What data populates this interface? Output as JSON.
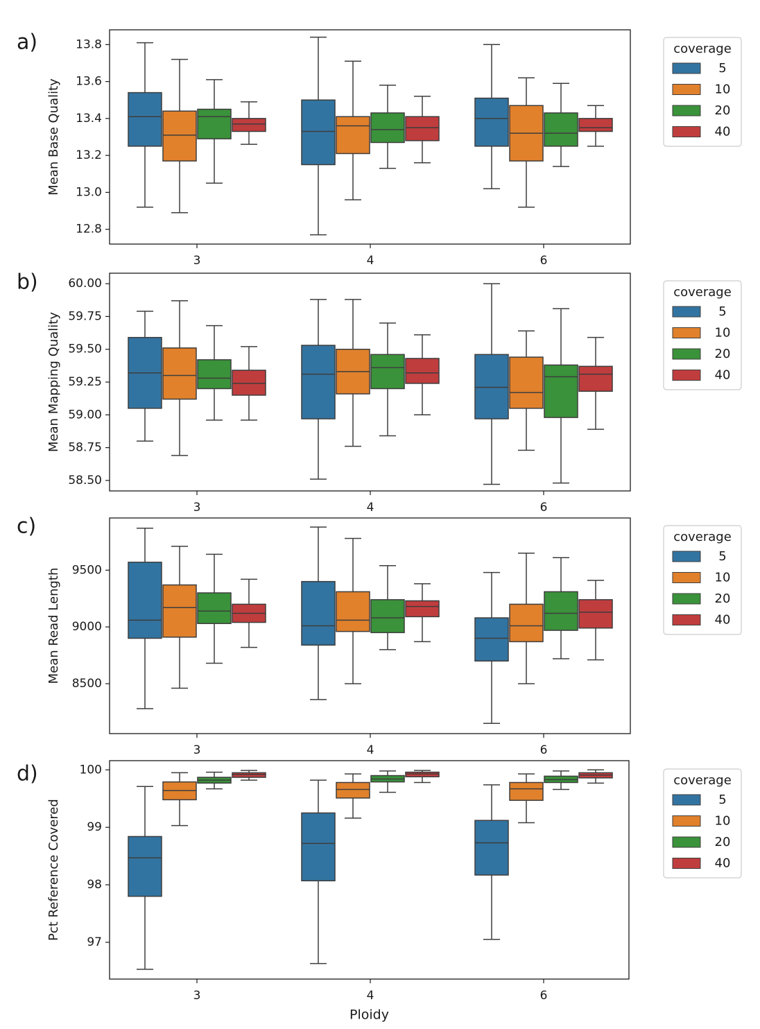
{
  "chart_data": [
    {
      "type": "box",
      "panel_label": "a)",
      "title": "",
      "xlabel": "",
      "ylabel": "Mean Base Quality",
      "categories": [
        "3",
        "4",
        "6"
      ],
      "ylim": [
        12.72,
        13.88
      ],
      "yticks": [
        12.8,
        13.0,
        13.2,
        13.4,
        13.6,
        13.8
      ],
      "ytick_labels": [
        "12.8",
        "13.0",
        "13.2",
        "13.4",
        "13.6",
        "13.8"
      ],
      "legend": {
        "title": "coverage",
        "position": "right",
        "entries": [
          "5",
          "10",
          "20",
          "40"
        ]
      },
      "series": [
        {
          "name": "5",
          "color": "#3274a1",
          "boxes": [
            {
              "min": 12.92,
              "q1": 13.25,
              "median": 13.41,
              "q3": 13.54,
              "max": 13.81
            },
            {
              "min": 12.77,
              "q1": 13.15,
              "median": 13.33,
              "q3": 13.5,
              "max": 13.84
            },
            {
              "min": 13.02,
              "q1": 13.25,
              "median": 13.4,
              "q3": 13.51,
              "max": 13.8
            }
          ]
        },
        {
          "name": "10",
          "color": "#e1812c",
          "boxes": [
            {
              "min": 12.89,
              "q1": 13.17,
              "median": 13.31,
              "q3": 13.44,
              "max": 13.72
            },
            {
              "min": 12.96,
              "q1": 13.21,
              "median": 13.36,
              "q3": 13.41,
              "max": 13.71
            },
            {
              "min": 12.92,
              "q1": 13.17,
              "median": 13.32,
              "q3": 13.47,
              "max": 13.62
            }
          ]
        },
        {
          "name": "20",
          "color": "#3a923a",
          "boxes": [
            {
              "min": 13.05,
              "q1": 13.29,
              "median": 13.41,
              "q3": 13.45,
              "max": 13.61
            },
            {
              "min": 13.13,
              "q1": 13.27,
              "median": 13.34,
              "q3": 13.43,
              "max": 13.58
            },
            {
              "min": 13.14,
              "q1": 13.25,
              "median": 13.32,
              "q3": 13.43,
              "max": 13.59
            }
          ]
        },
        {
          "name": "40",
          "color": "#c03d3e",
          "boxes": [
            {
              "min": 13.26,
              "q1": 13.33,
              "median": 13.37,
              "q3": 13.4,
              "max": 13.49
            },
            {
              "min": 13.16,
              "q1": 13.28,
              "median": 13.35,
              "q3": 13.41,
              "max": 13.52
            },
            {
              "min": 13.25,
              "q1": 13.33,
              "median": 13.35,
              "q3": 13.4,
              "max": 13.47
            }
          ]
        }
      ]
    },
    {
      "type": "box",
      "panel_label": "b)",
      "title": "",
      "xlabel": "",
      "ylabel": "Mean Mapping Quality",
      "categories": [
        "3",
        "4",
        "6"
      ],
      "ylim": [
        58.42,
        60.08
      ],
      "yticks": [
        58.5,
        58.75,
        59.0,
        59.25,
        59.5,
        59.75,
        60.0
      ],
      "ytick_labels": [
        "58.50",
        "58.75",
        "59.00",
        "59.25",
        "59.50",
        "59.75",
        "60.00"
      ],
      "legend": {
        "title": "coverage",
        "position": "right",
        "entries": [
          "5",
          "10",
          "20",
          "40"
        ]
      },
      "series": [
        {
          "name": "5",
          "color": "#3274a1",
          "boxes": [
            {
              "min": 58.8,
              "q1": 59.05,
              "median": 59.32,
              "q3": 59.59,
              "max": 59.79
            },
            {
              "min": 58.51,
              "q1": 58.97,
              "median": 59.31,
              "q3": 59.53,
              "max": 59.88
            },
            {
              "min": 58.47,
              "q1": 58.97,
              "median": 59.21,
              "q3": 59.46,
              "max": 60.0
            }
          ]
        },
        {
          "name": "10",
          "color": "#e1812c",
          "boxes": [
            {
              "min": 58.69,
              "q1": 59.12,
              "median": 59.3,
              "q3": 59.51,
              "max": 59.87
            },
            {
              "min": 58.76,
              "q1": 59.16,
              "median": 59.33,
              "q3": 59.5,
              "max": 59.88
            },
            {
              "min": 58.73,
              "q1": 59.05,
              "median": 59.17,
              "q3": 59.44,
              "max": 59.64
            }
          ]
        },
        {
          "name": "20",
          "color": "#3a923a",
          "boxes": [
            {
              "min": 58.96,
              "q1": 59.2,
              "median": 59.28,
              "q3": 59.42,
              "max": 59.68
            },
            {
              "min": 58.84,
              "q1": 59.2,
              "median": 59.36,
              "q3": 59.46,
              "max": 59.7
            },
            {
              "min": 58.48,
              "q1": 58.98,
              "median": 59.29,
              "q3": 59.38,
              "max": 59.81
            }
          ]
        },
        {
          "name": "40",
          "color": "#c03d3e",
          "boxes": [
            {
              "min": 58.96,
              "q1": 59.15,
              "median": 59.24,
              "q3": 59.34,
              "max": 59.52
            },
            {
              "min": 59.0,
              "q1": 59.24,
              "median": 59.32,
              "q3": 59.43,
              "max": 59.61
            },
            {
              "min": 58.89,
              "q1": 59.18,
              "median": 59.31,
              "q3": 59.37,
              "max": 59.59
            }
          ]
        }
      ]
    },
    {
      "type": "box",
      "panel_label": "c)",
      "title": "",
      "xlabel": "",
      "ylabel": "Mean Read Length",
      "categories": [
        "3",
        "4",
        "6"
      ],
      "ylim": [
        8060,
        9960
      ],
      "yticks": [
        8500,
        9000,
        9500
      ],
      "ytick_labels": [
        "8500",
        "9000",
        "9500"
      ],
      "legend": {
        "title": "coverage",
        "position": "right",
        "entries": [
          "5",
          "10",
          "20",
          "40"
        ]
      },
      "series": [
        {
          "name": "5",
          "color": "#3274a1",
          "boxes": [
            {
              "min": 8280,
              "q1": 8900,
              "median": 9060,
              "q3": 9570,
              "max": 9870
            },
            {
              "min": 8360,
              "q1": 8840,
              "median": 9010,
              "q3": 9400,
              "max": 9880
            },
            {
              "min": 8150,
              "q1": 8700,
              "median": 8900,
              "q3": 9080,
              "max": 9480
            }
          ]
        },
        {
          "name": "10",
          "color": "#e1812c",
          "boxes": [
            {
              "min": 8460,
              "q1": 8910,
              "median": 9170,
              "q3": 9370,
              "max": 9710
            },
            {
              "min": 8500,
              "q1": 8960,
              "median": 9060,
              "q3": 9310,
              "max": 9780
            },
            {
              "min": 8500,
              "q1": 8870,
              "median": 9010,
              "q3": 9200,
              "max": 9650
            }
          ]
        },
        {
          "name": "20",
          "color": "#3a923a",
          "boxes": [
            {
              "min": 8680,
              "q1": 9030,
              "median": 9140,
              "q3": 9300,
              "max": 9640
            },
            {
              "min": 8800,
              "q1": 8950,
              "median": 9080,
              "q3": 9240,
              "max": 9540
            },
            {
              "min": 8720,
              "q1": 8970,
              "median": 9120,
              "q3": 9310,
              "max": 9610
            }
          ]
        },
        {
          "name": "40",
          "color": "#c03d3e",
          "boxes": [
            {
              "min": 8820,
              "q1": 9040,
              "median": 9120,
              "q3": 9200,
              "max": 9420
            },
            {
              "min": 8870,
              "q1": 9090,
              "median": 9180,
              "q3": 9230,
              "max": 9380
            },
            {
              "min": 8710,
              "q1": 8990,
              "median": 9130,
              "q3": 9240,
              "max": 9410
            }
          ]
        }
      ]
    },
    {
      "type": "box",
      "panel_label": "d)",
      "title": "",
      "xlabel": "Ploidy",
      "ylabel": "Pct Reference Covered",
      "categories": [
        "3",
        "4",
        "6"
      ],
      "ylim": [
        96.36,
        100.16
      ],
      "yticks": [
        97,
        98,
        99,
        100
      ],
      "ytick_labels": [
        "97",
        "98",
        "99",
        "100"
      ],
      "legend": {
        "title": "coverage",
        "position": "right",
        "entries": [
          "5",
          "10",
          "20",
          "40"
        ]
      },
      "series": [
        {
          "name": "5",
          "color": "#3274a1",
          "boxes": [
            {
              "min": 96.53,
              "q1": 97.8,
              "median": 98.47,
              "q3": 98.84,
              "max": 99.71
            },
            {
              "min": 96.63,
              "q1": 98.07,
              "median": 98.72,
              "q3": 99.25,
              "max": 99.82
            },
            {
              "min": 97.05,
              "q1": 98.17,
              "median": 98.73,
              "q3": 99.12,
              "max": 99.74
            }
          ]
        },
        {
          "name": "10",
          "color": "#e1812c",
          "boxes": [
            {
              "min": 99.03,
              "q1": 99.48,
              "median": 99.64,
              "q3": 99.79,
              "max": 99.95
            },
            {
              "min": 99.16,
              "q1": 99.51,
              "median": 99.66,
              "q3": 99.78,
              "max": 99.93
            },
            {
              "min": 99.08,
              "q1": 99.47,
              "median": 99.67,
              "q3": 99.78,
              "max": 99.93
            }
          ]
        },
        {
          "name": "20",
          "color": "#3a923a",
          "boxes": [
            {
              "min": 99.67,
              "q1": 99.77,
              "median": 99.82,
              "q3": 99.87,
              "max": 99.96
            },
            {
              "min": 99.61,
              "q1": 99.79,
              "median": 99.84,
              "q3": 99.9,
              "max": 99.98
            },
            {
              "min": 99.66,
              "q1": 99.78,
              "median": 99.83,
              "q3": 99.89,
              "max": 99.98
            }
          ]
        },
        {
          "name": "40",
          "color": "#c03d3e",
          "boxes": [
            {
              "min": 99.82,
              "q1": 99.87,
              "median": 99.92,
              "q3": 99.95,
              "max": 99.99
            },
            {
              "min": 99.78,
              "q1": 99.88,
              "median": 99.93,
              "q3": 99.96,
              "max": 99.99
            },
            {
              "min": 99.77,
              "q1": 99.86,
              "median": 99.91,
              "q3": 99.95,
              "max": 100.0
            }
          ]
        }
      ]
    }
  ]
}
